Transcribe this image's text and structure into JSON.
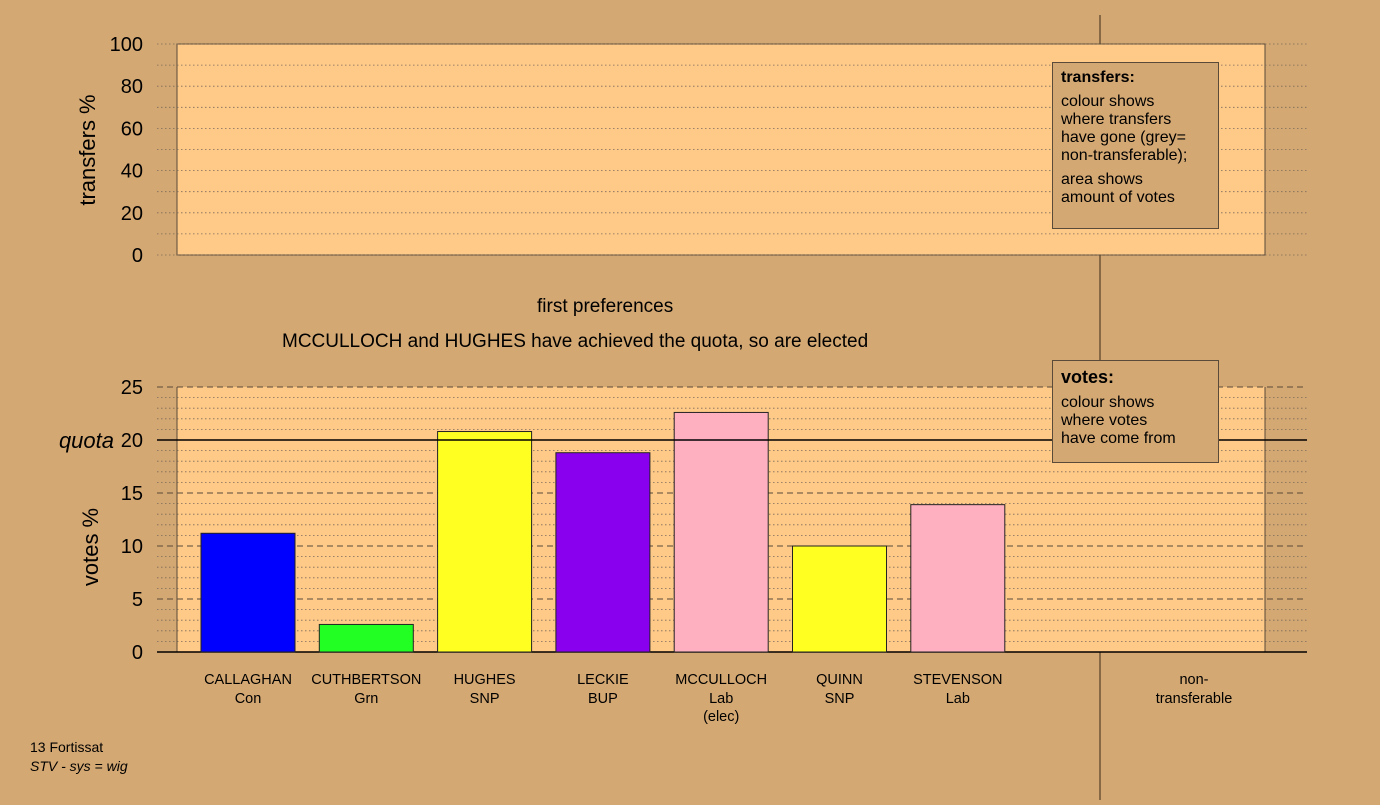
{
  "chart_data": [
    {
      "type": "bar",
      "panel": "transfers",
      "ylabel": "transfers %",
      "ylim": [
        0,
        100
      ],
      "yticks": [
        "0",
        "20",
        "40",
        "60",
        "80",
        "100"
      ],
      "values": []
    },
    {
      "type": "bar",
      "panel": "votes",
      "title": "first preferences",
      "subtitle": "MCCULLOCH and HUGHES have achieved the quota, so are elected",
      "ylabel": "votes %",
      "ylim": [
        0,
        25
      ],
      "yticks": [
        "0",
        "5",
        "10",
        "15",
        "20",
        "25"
      ],
      "quota": 20,
      "quota_label": "quota",
      "categories": [
        {
          "name": "CALLAGHAN",
          "party": "Con",
          "note": ""
        },
        {
          "name": "CUTHBERTSON",
          "party": "Grn",
          "note": ""
        },
        {
          "name": "HUGHES",
          "party": "SNP",
          "note": ""
        },
        {
          "name": "LECKIE",
          "party": "BUP",
          "note": ""
        },
        {
          "name": "MCCULLOCH",
          "party": "Lab",
          "note": "(elec)"
        },
        {
          "name": "QUINN",
          "party": "SNP",
          "note": ""
        },
        {
          "name": "STEVENSON",
          "party": "Lab",
          "note": ""
        }
      ],
      "values": [
        11.2,
        2.6,
        20.8,
        18.8,
        22.6,
        10.0,
        13.9
      ],
      "colors": [
        "#0000ff",
        "#22ff22",
        "#ffff22",
        "#8800ee",
        "#ffb0c0",
        "#ffff22",
        "#ffb0c0"
      ],
      "extra_category": {
        "line1": "non-",
        "line2": "transferable"
      }
    }
  ],
  "legend_transfers": {
    "title": "transfers:",
    "lines": [
      "colour shows",
      "where transfers",
      "have gone (grey=",
      "non-transferable);"
    ],
    "lines2": [
      "area shows",
      "amount of votes"
    ]
  },
  "legend_votes": {
    "title": "votes:",
    "lines": [
      "colour shows",
      "where votes",
      "have come from"
    ]
  },
  "footer": {
    "ward": "13 Fortissat",
    "system": "STV - sys = wig"
  },
  "colors": {
    "background": "#d4a873",
    "panel": "#ffca88"
  }
}
